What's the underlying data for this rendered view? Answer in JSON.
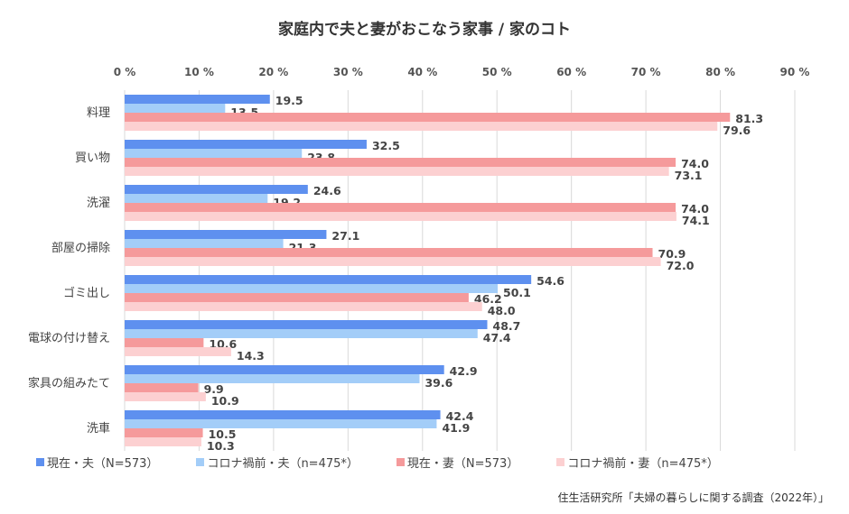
{
  "chart_data": {
    "type": "bar",
    "orientation": "horizontal",
    "title": "家庭内で夫と妻がおこなう家事 / 家のコト",
    "categories": [
      "料理",
      "買い物",
      "洗濯",
      "部屋の掃除",
      "ゴミ出し",
      "電球の付け替え",
      "家具の組みたて",
      "洗車"
    ],
    "xlim": [
      0,
      90
    ],
    "xticks": [
      "0 %",
      "10 %",
      "20 %",
      "30 %",
      "40 %",
      "50 %",
      "60 %",
      "70 %",
      "80 %",
      "90 %"
    ],
    "grid": true,
    "legend_position": "bottom",
    "series": [
      {
        "name": "現在・夫（N=573）",
        "color": "#5e90ef",
        "values": [
          19.5,
          32.5,
          24.6,
          27.1,
          54.6,
          48.7,
          42.9,
          42.4
        ]
      },
      {
        "name": "コロナ禍前・夫（n=475*）",
        "color": "#a3cdf8",
        "values": [
          13.5,
          23.8,
          19.2,
          21.3,
          50.1,
          47.4,
          39.6,
          41.9
        ]
      },
      {
        "name": "現在・妻（N=573）",
        "color": "#f59a9b",
        "values": [
          81.3,
          74.0,
          74.0,
          70.9,
          46.2,
          10.6,
          9.9,
          10.5
        ]
      },
      {
        "name": "コロナ禍前・妻（n=475*）",
        "color": "#fcd0d1",
        "values": [
          79.6,
          73.1,
          74.1,
          72.0,
          48.0,
          14.3,
          10.9,
          10.3
        ]
      }
    ]
  },
  "source": "住生活研究所「夫婦の暮らしに関する調査（2022年）」"
}
